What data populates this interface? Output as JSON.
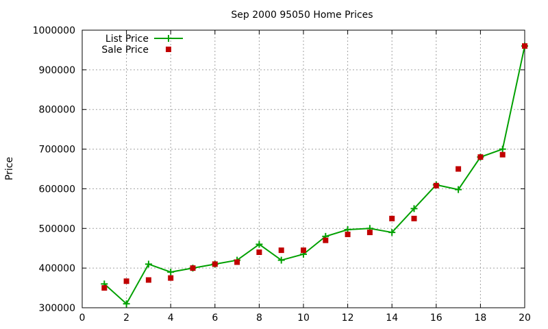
{
  "chart_data": {
    "type": "line",
    "title": "Sep 2000 95050 Home Prices",
    "xlabel": "",
    "ylabel": "Price",
    "xlim": [
      0,
      20
    ],
    "ylim": [
      300000,
      1000000
    ],
    "x_ticks": [
      0,
      2,
      4,
      6,
      8,
      10,
      12,
      14,
      16,
      18,
      20
    ],
    "y_ticks": [
      300000,
      400000,
      500000,
      600000,
      700000,
      800000,
      900000,
      1000000
    ],
    "grid": true,
    "legend_position": "top-left",
    "series": [
      {
        "name": "List Price",
        "style": "line-plus",
        "color": "#00a000",
        "x": [
          1,
          2,
          3,
          4,
          5,
          6,
          7,
          8,
          9,
          10,
          11,
          12,
          13,
          14,
          15,
          16,
          17,
          18,
          19,
          20
        ],
        "values": [
          360000,
          310000,
          410000,
          390000,
          400000,
          410000,
          420000,
          460000,
          420000,
          435000,
          480000,
          497000,
          500000,
          490000,
          550000,
          610000,
          598000,
          680000,
          700000,
          960000
        ]
      },
      {
        "name": "Sale Price",
        "style": "square",
        "color": "#c00000",
        "x": [
          1,
          2,
          3,
          4,
          5,
          6,
          7,
          8,
          9,
          10,
          11,
          12,
          13,
          14,
          15,
          16,
          17,
          18,
          19,
          20
        ],
        "values": [
          350000,
          367000,
          370000,
          375000,
          400000,
          410000,
          415000,
          440000,
          445000,
          445000,
          470000,
          485000,
          490000,
          525000,
          525000,
          608000,
          650000,
          680000,
          686000,
          960000
        ]
      }
    ]
  }
}
